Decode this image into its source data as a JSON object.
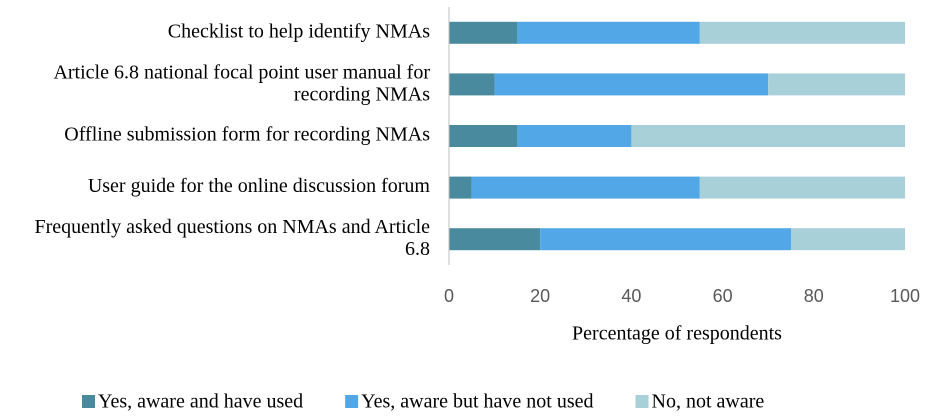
{
  "chart_data": {
    "type": "stacked_bar_horizontal",
    "categories": [
      "Checklist to help identify NMAs",
      "Article 6.8 national focal point user manual for recording NMAs",
      "Offline submission form for recording NMAs",
      "User guide for the online discussion forum",
      "Frequently asked questions on NMAs and Article 6.8"
    ],
    "series": [
      {
        "name": "Yes, aware and have used",
        "color": "#4a8a9e",
        "values": [
          15,
          10,
          15,
          5,
          20
        ]
      },
      {
        "name": "Yes, aware but have not used",
        "color": "#52a8e6",
        "values": [
          40,
          60,
          25,
          50,
          55
        ]
      },
      {
        "name": "No, not aware",
        "color": "#a8d0d8",
        "values": [
          45,
          30,
          60,
          45,
          25
        ]
      }
    ],
    "xlabel": "Percentage of respondents",
    "xlim": [
      0,
      100
    ],
    "xticks": [
      0,
      20,
      40,
      60,
      80,
      100
    ],
    "legend": "bottom"
  }
}
